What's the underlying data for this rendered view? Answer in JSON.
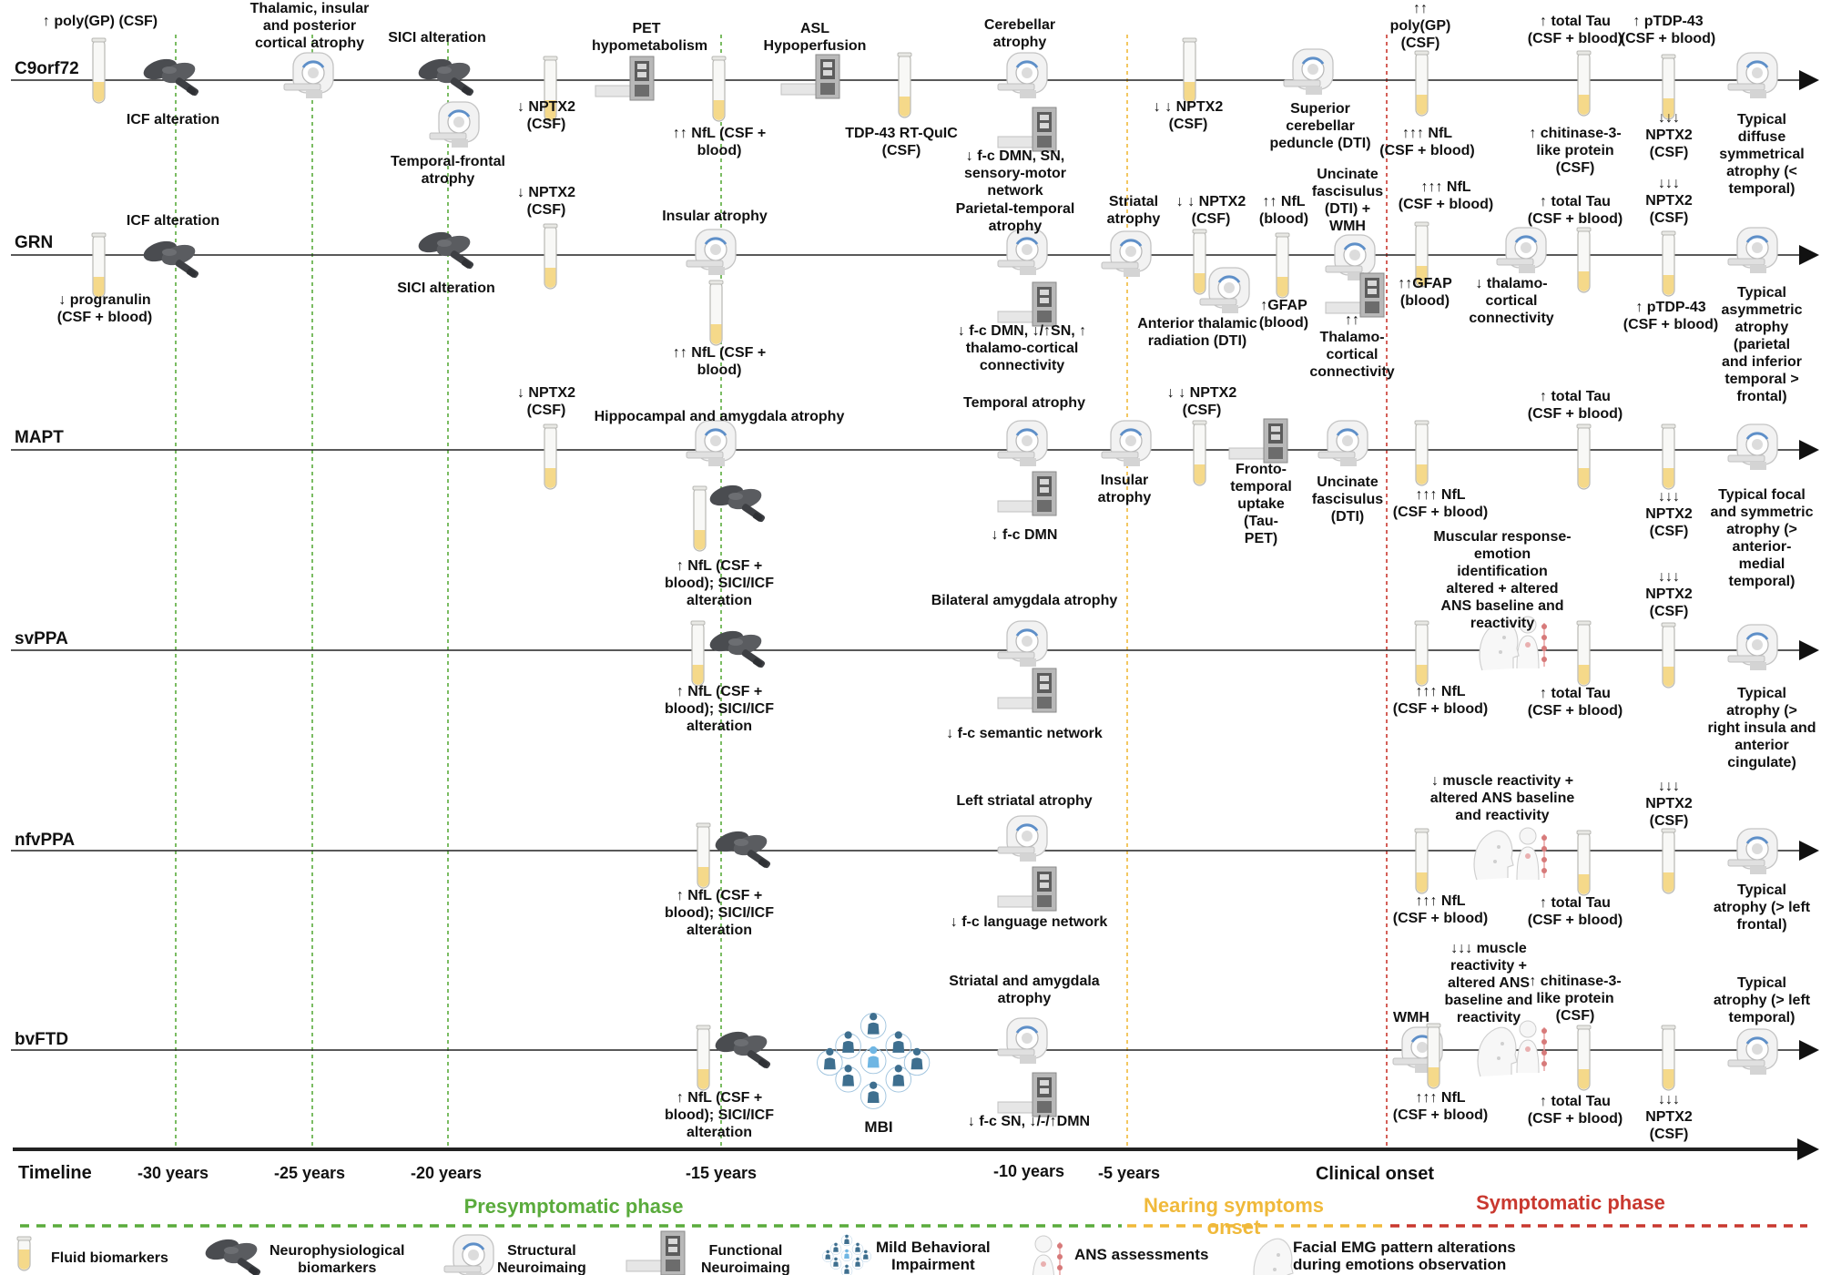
{
  "rows": {
    "c9orf72": "C9orf72",
    "grn": "GRN",
    "mapt": "MAPT",
    "svppa": "svPPA",
    "nfvppa": "nfvPPA",
    "bvftd": "bvFTD"
  },
  "c9": {
    "poly_gp": "↑ poly(GP) (CSF)",
    "icf": "ICF alteration",
    "thalamic": "Thalamic, insular\nand posterior\ncortical atrophy",
    "sici": "SICI alteration",
    "temporo_frontal": "Temporal-frontal\natrophy",
    "nptx2_a": "↓ NPTX2\n(CSF)",
    "pet": "PET\nhypometabolism",
    "nfl": "↑↑ NfL (CSF +\nblood)",
    "asl": "ASL\nHypoperfusion",
    "tdp_rtquic": "TDP-43 RT-QuIC\n(CSF)",
    "cerebellar": "Cerebellar\natrophy",
    "fc": "↓ f-c DMN, SN,\nsensory-motor\nnetwork",
    "nptx2_b": "↓ ↓ NPTX2\n(CSF)",
    "scp": "Superior\ncerebellar\npeduncle (DTI)",
    "poly_gp2": "↑↑\npoly(GP)\n(CSF)",
    "nfl3": "↑↑↑ NfL\n(CSF + blood)",
    "tau": "↑ total Tau\n(CSF + blood)",
    "chit": "↑ chitinase-3-\nlike protein\n(CSF)",
    "ptdp": "↑ pTDP-43\n(CSF + blood)",
    "nptx2_c": "↓↓↓\nNPTX2\n(CSF)",
    "typical": "Typical\ndiffuse\nsymmetrical\natrophy (<\ntemporal)"
  },
  "grn": {
    "icf": "ICF alteration",
    "progranulin": "↓ progranulin\n(CSF + blood)",
    "sici": "SICI alteration",
    "nptx2_a": "↓ NPTX2\n(CSF)",
    "insular": "Insular atrophy",
    "nfl": "↑↑ NfL (CSF +\nblood)",
    "parietal": "Parietal-temporal\natrophy",
    "fc": "↓ f-c DMN, ↓/↑SN, ↑\nthalamo-cortical\nconnectivity",
    "striatal": "Striatal\natrophy",
    "nptx2_b": "↓ ↓ NPTX2\n(CSF)",
    "atr": "Anterior thalamic\nradiation (DTI)",
    "nfl_blood": "↑↑ NfL\n(blood)",
    "gfap": "↑GFAP\n(blood)",
    "uncinate": "Uncinate\nfascisulus\n(DTI) +\nWMH",
    "thal_conn": "↑↑\nThalamo-\ncortical\nconnectivity",
    "nfl3": "↑↑↑ NfL\n(CSF + blood)",
    "gfap2": "↑↑GFAP\n(blood)",
    "thal_conn_dec": "↓ thalamo-\ncortical\nconnectivity",
    "tau": "↑ total Tau\n(CSF + blood)",
    "nptx2_c": "↓↓↓\nNPTX2\n(CSF)",
    "ptdp": "↑ pTDP-43\n(CSF + blood)",
    "typical": "Typical\nasymmetric\natrophy\n(parietal\nand inferior\ntemporal >\nfrontal)"
  },
  "mapt": {
    "nptx2_a": "↓ NPTX2\n(CSF)",
    "hippo": "Hippocampal and amygdala atrophy",
    "nfl": "↑ NfL (CSF +\nblood); SICI/ICF\nalteration",
    "temporal": "Temporal atrophy",
    "fc": "↓ f-c DMN",
    "insular": "Insular\natrophy",
    "nptx2_b": "↓ ↓ NPTX2\n(CSF)",
    "taupet": "Fronto-\ntemporal\nuptake\n(Tau-\nPET)",
    "uncinate": "Uncinate\nfascisulus\n(DTI)",
    "nfl3": "↑↑↑ NfL\n(CSF + blood)",
    "tau": "↑ total Tau\n(CSF + blood)",
    "nptx2_c": "↓↓↓\nNPTX2\n(CSF)",
    "typical": "Typical focal\nand symmetric\natrophy (>\nanterior-\nmedial\ntemporal)"
  },
  "svppa": {
    "nfl": "↑ NfL (CSF +\nblood); SICI/ICF\nalteration",
    "amygdala": "Bilateral amygdala atrophy",
    "fc": "↓ f-c semantic network",
    "muscular": "Muscular response-\nemotion\nidentification\naltered + altered\nANS baseline and\nreactivity",
    "nfl3": "↑↑↑ NfL\n(CSF + blood)",
    "tau": "↑ total Tau\n(CSF + blood)",
    "nptx2": "↓↓↓\nNPTX2\n(CSF)",
    "typical": "Typical\natrophy (>\nright insula and\nanterior\ncingulate)"
  },
  "nfvppa": {
    "nfl": "↑ NfL (CSF +\nblood); SICI/ICF\nalteration",
    "striatal": "Left striatal atrophy",
    "fc": "↓ f-c language network",
    "muscle": "↓ muscle reactivity +\naltered ANS baseline\nand reactivity",
    "nfl3": "↑↑↑ NfL\n(CSF + blood)",
    "tau": "↑ total Tau\n(CSF + blood)",
    "nptx2": "↓↓↓\nNPTX2\n(CSF)",
    "typical": "Typical\natrophy (> left\nfrontal)"
  },
  "bvftd": {
    "nfl": "↑ NfL (CSF +\nblood); SICI/ICF\nalteration",
    "mbi": "MBI",
    "striatal": "Striatal and amygdala\natrophy",
    "fc": "↓ f-c SN, ↓/-/↑DMN",
    "wmh": "WMH",
    "muscle": "↓↓↓ muscle\nreactivity +\naltered ANS\nbaseline and\nreactivity",
    "nfl3": "↑↑↑ NfL\n(CSF + blood)",
    "chit": "↑ chitinase-3-\nlike protein\n(CSF)",
    "tau": "↑ total Tau\n(CSF + blood)",
    "nptx2": "↓↓↓\nNPTX2\n(CSF)",
    "typical": "Typical\natrophy (> left\ntemporal)"
  },
  "timeline": {
    "title": "Timeline",
    "t30": "-30 years",
    "t25": "-25 years",
    "t20": "-20 years",
    "t15": "-15 years",
    "t10": "-10 years",
    "t5": "-5 years",
    "onset": "Clinical onset"
  },
  "phases": {
    "presymptomatic": "Presymptomatic phase",
    "nearing": "Nearing symptoms\nonset",
    "symptomatic": "Symptomatic phase"
  },
  "legend": {
    "fluid": "Fluid biomarkers",
    "neurophys": "Neurophysiological\nbiomarkers",
    "structural": "Structural\nNeuroimaing",
    "functional": "Functional\nNeuroimaing",
    "mbi": "Mild Behavioral\nImpairment",
    "ans": "ANS assessments",
    "emg": "Facial EMG pattern alterations\nduring emotions observation"
  },
  "colors": {
    "presymptomatic": "#5aab3c",
    "nearing": "#f0b93a",
    "symptomatic": "#c9382f",
    "tube_fill": "#f5d98a",
    "mbi": "#3e6f8f"
  }
}
